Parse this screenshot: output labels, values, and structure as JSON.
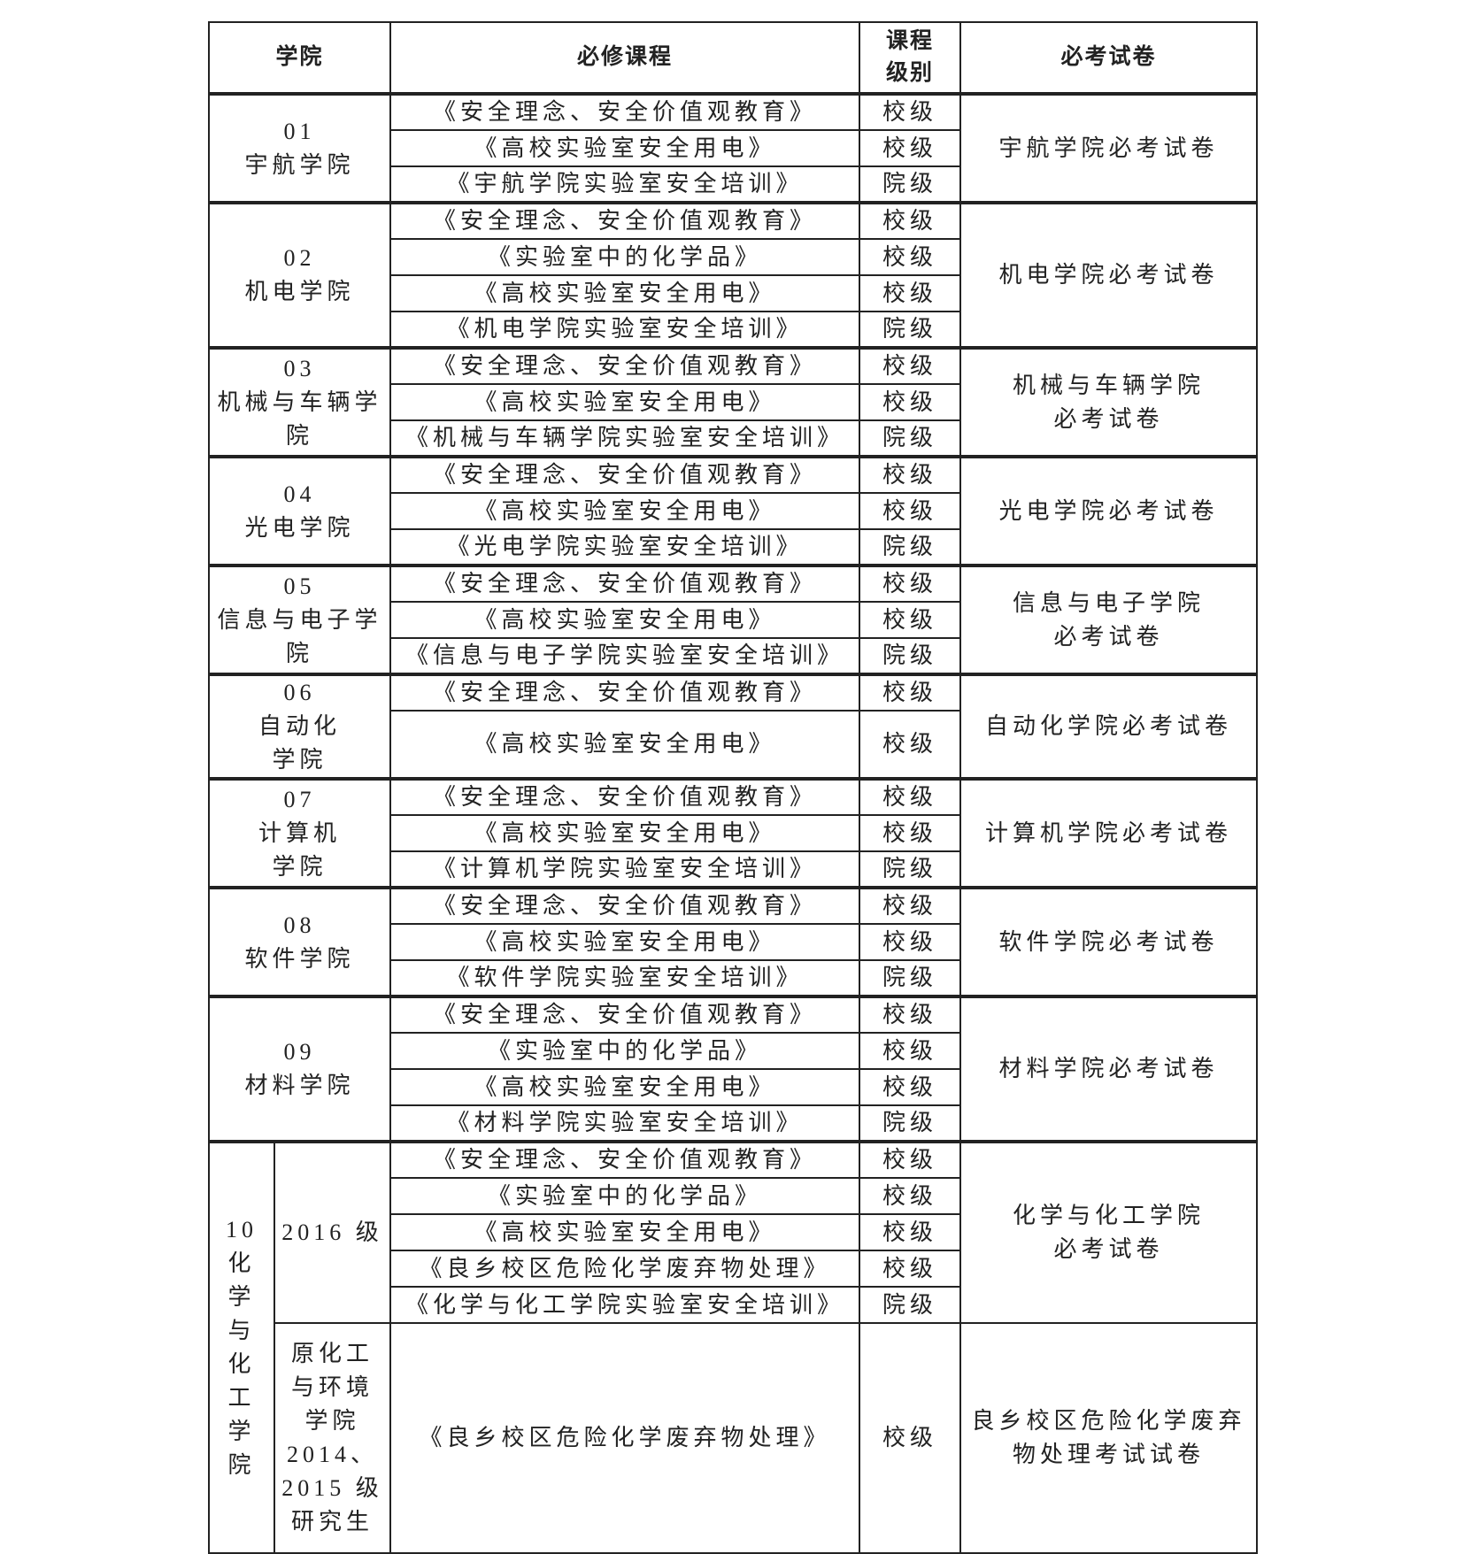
{
  "header": {
    "college": "学院",
    "course": "必修课程",
    "level": [
      "课程",
      "级别"
    ],
    "exam": "必考试卷"
  },
  "groups": [
    {
      "code": "01",
      "name": [
        "宇航学院"
      ],
      "courses": [
        {
          "name": "《安全理念、安全价值观教育》",
          "level": "校级"
        },
        {
          "name": "《高校实验室安全用电》",
          "level": "校级"
        },
        {
          "name": "《宇航学院实验室安全培训》",
          "level": "院级"
        }
      ],
      "exam": [
        "宇航学院必考试卷"
      ]
    },
    {
      "code": "02",
      "name": [
        "机电学院"
      ],
      "courses": [
        {
          "name": "《安全理念、安全价值观教育》",
          "level": "校级"
        },
        {
          "name": "《实验室中的化学品》",
          "level": "校级"
        },
        {
          "name": "《高校实验室安全用电》",
          "level": "校级"
        },
        {
          "name": "《机电学院实验室安全培训》",
          "level": "院级"
        }
      ],
      "exam": [
        "机电学院必考试卷"
      ]
    },
    {
      "code": "03",
      "name": [
        "机械与车辆学",
        "院"
      ],
      "courses": [
        {
          "name": "《安全理念、安全价值观教育》",
          "level": "校级"
        },
        {
          "name": "《高校实验室安全用电》",
          "level": "校级"
        },
        {
          "name": "《机械与车辆学院实验室安全培训》",
          "level": "院级"
        }
      ],
      "exam": [
        "机械与车辆学院",
        "必考试卷"
      ]
    },
    {
      "code": "04",
      "name": [
        "光电学院"
      ],
      "courses": [
        {
          "name": "《安全理念、安全价值观教育》",
          "level": "校级"
        },
        {
          "name": "《高校实验室安全用电》",
          "level": "校级"
        },
        {
          "name": "《光电学院实验室安全培训》",
          "level": "院级"
        }
      ],
      "exam": [
        "光电学院必考试卷"
      ]
    },
    {
      "code": "05",
      "name": [
        "信息与电子学",
        "院"
      ],
      "courses": [
        {
          "name": "《安全理念、安全价值观教育》",
          "level": "校级"
        },
        {
          "name": "《高校实验室安全用电》",
          "level": "校级"
        },
        {
          "name": "《信息与电子学院实验室安全培训》",
          "level": "院级"
        }
      ],
      "exam": [
        "信息与电子学院",
        "必考试卷"
      ]
    },
    {
      "code": "06",
      "name": [
        "自动化",
        "学院"
      ],
      "courses": [
        {
          "name": "《安全理念、安全价值观教育》",
          "level": "校级"
        },
        {
          "name": "《高校实验室安全用电》",
          "level": "校级"
        }
      ],
      "exam": [
        "自动化学院必考试卷"
      ]
    },
    {
      "code": "07",
      "name": [
        "计算机",
        "学院"
      ],
      "courses": [
        {
          "name": "《安全理念、安全价值观教育》",
          "level": "校级"
        },
        {
          "name": "《高校实验室安全用电》",
          "level": "校级"
        },
        {
          "name": "《计算机学院实验室安全培训》",
          "level": "院级"
        }
      ],
      "exam": [
        "计算机学院必考试卷"
      ]
    },
    {
      "code": "08",
      "name": [
        "软件学院"
      ],
      "courses": [
        {
          "name": "《安全理念、安全价值观教育》",
          "level": "校级"
        },
        {
          "name": "《高校实验室安全用电》",
          "level": "校级"
        },
        {
          "name": "《软件学院实验室安全培训》",
          "level": "院级"
        }
      ],
      "exam": [
        "软件学院必考试卷"
      ]
    },
    {
      "code": "09",
      "name": [
        "材料学院"
      ],
      "courses": [
        {
          "name": "《安全理念、安全价值观教育》",
          "level": "校级"
        },
        {
          "name": "《实验室中的化学品》",
          "level": "校级"
        },
        {
          "name": "《高校实验室安全用电》",
          "level": "校级"
        },
        {
          "name": "《材料学院实验室安全培训》",
          "level": "院级"
        }
      ],
      "exam": [
        "材料学院必考试卷"
      ]
    },
    {
      "code": "10",
      "name": [
        "化",
        "学",
        "与",
        "化",
        "工",
        "学",
        "院"
      ],
      "subgroups": [
        {
          "label": [
            "2016 级"
          ],
          "courses": [
            {
              "name": "《安全理念、安全价值观教育》",
              "level": "校级"
            },
            {
              "name": "《实验室中的化学品》",
              "level": "校级"
            },
            {
              "name": "《高校实验室安全用电》",
              "level": "校级"
            },
            {
              "name": "《良乡校区危险化学废弃物处理》",
              "level": "校级"
            },
            {
              "name": "《化学与化工学院实验室安全培训》",
              "level": "院级"
            }
          ],
          "exam": [
            "化学与化工学院",
            "必考试卷"
          ]
        },
        {
          "label": [
            "原化工",
            "与环境",
            "学院",
            "2014、",
            "2015 级",
            "研究生"
          ],
          "courses": [
            {
              "name": "《良乡校区危险化学废弃物处理》",
              "level": "校级"
            }
          ],
          "exam": [
            "良乡校区危险化学废弃",
            "物处理考试试卷"
          ]
        }
      ]
    }
  ]
}
